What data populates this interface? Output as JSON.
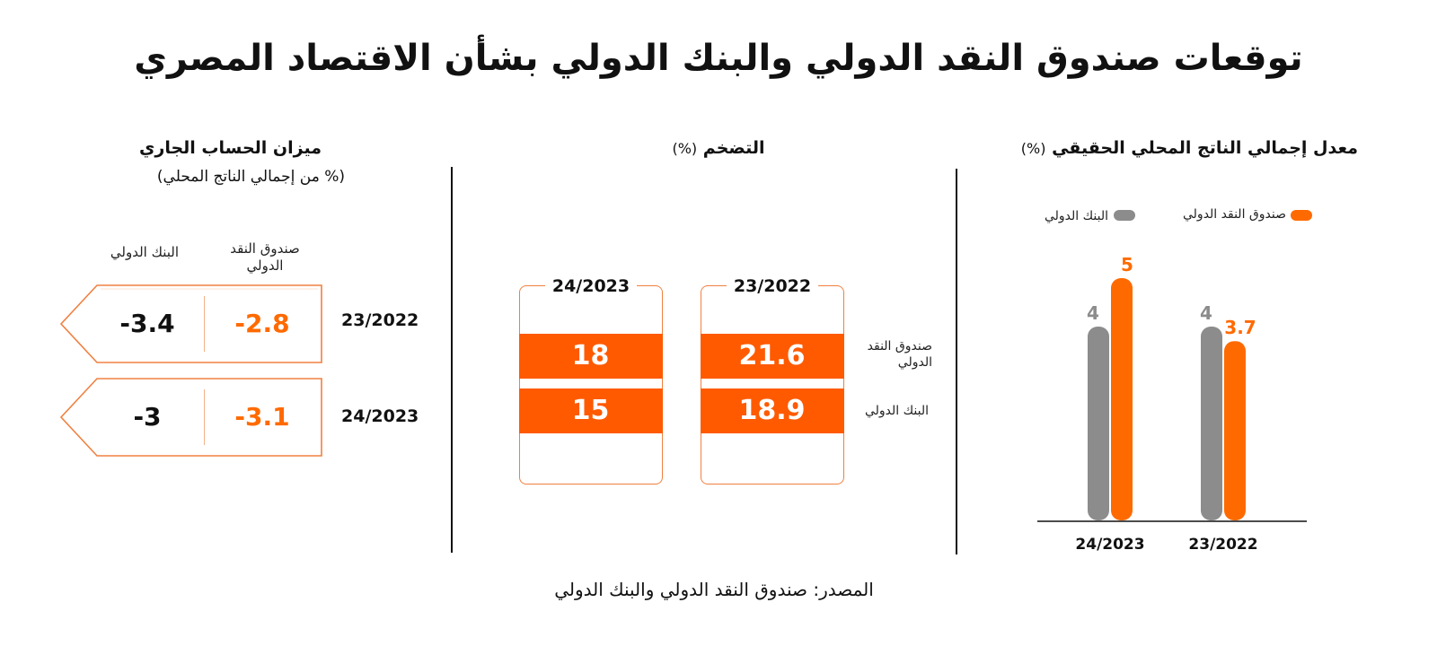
{
  "title": "توقعات صندوق النقد الدولي والبنك الدولي بشأن الاقتصاد المصري",
  "source": "المصدر: صندوق النقد الدولي والبنك الدولي",
  "colors": {
    "imf": "#ff6a00",
    "wb": "#8c8c8c",
    "inflation_band": "#ff5a00"
  },
  "gdp": {
    "title": "معدل إجمالي الناتج المحلي الحقيقي",
    "unit": "(%)",
    "legend": {
      "imf": "صندوق النقد الدولي",
      "wb": "البنك الدولي"
    }
  },
  "inflation": {
    "title": "التضخم",
    "unit": "(%)",
    "row_labels": {
      "imf": "صندوق النقد الدولي",
      "wb": "البنك الدولي"
    },
    "cards": [
      {
        "year": "23/2022",
        "imf": "21.6",
        "wb": "18.9"
      },
      {
        "year": "24/2023",
        "imf": "18",
        "wb": "15"
      }
    ]
  },
  "current_account": {
    "title": "ميزان الحساب الجاري",
    "subtitle": "(% من إجمالي الناتج المحلي)",
    "col_imf": "صندوق النقد الدولي",
    "col_wb": "البنك الدولي",
    "rows": [
      {
        "year": "23/2022",
        "imf": "-2.8",
        "wb": "-3.4"
      },
      {
        "year": "24/2023",
        "imf": "-3.1",
        "wb": "-3"
      }
    ]
  },
  "chart_data": [
    {
      "type": "bar",
      "title": "معدل إجمالي الناتج المحلي الحقيقي (%)",
      "categories": [
        "23/2022",
        "24/2023"
      ],
      "series": [
        {
          "name": "صندوق النقد الدولي",
          "values": [
            3.7,
            5
          ]
        },
        {
          "name": "البنك الدولي",
          "values": [
            4,
            4
          ]
        }
      ],
      "value_labels": {
        "صندوق النقد الدولي": [
          "3.7",
          "5"
        ],
        "البنك الدولي": [
          "4",
          "4"
        ]
      },
      "legend": "top",
      "grid": false
    },
    {
      "type": "table",
      "title": "التضخم (%)",
      "columns": [
        "23/2022",
        "24/2023"
      ],
      "rows": [
        {
          "name": "صندوق النقد الدولي",
          "values": [
            21.6,
            18
          ]
        },
        {
          "name": "البنك الدولي",
          "values": [
            18.9,
            15
          ]
        }
      ]
    },
    {
      "type": "table",
      "title": "ميزان الحساب الجاري (% من إجمالي الناتج المحلي)",
      "columns": [
        "صندوق النقد الدولي",
        "البنك الدولي"
      ],
      "rows": [
        {
          "name": "23/2022",
          "values": [
            -2.8,
            -3.4
          ]
        },
        {
          "name": "24/2023",
          "values": [
            -3.1,
            -3
          ]
        }
      ]
    }
  ]
}
